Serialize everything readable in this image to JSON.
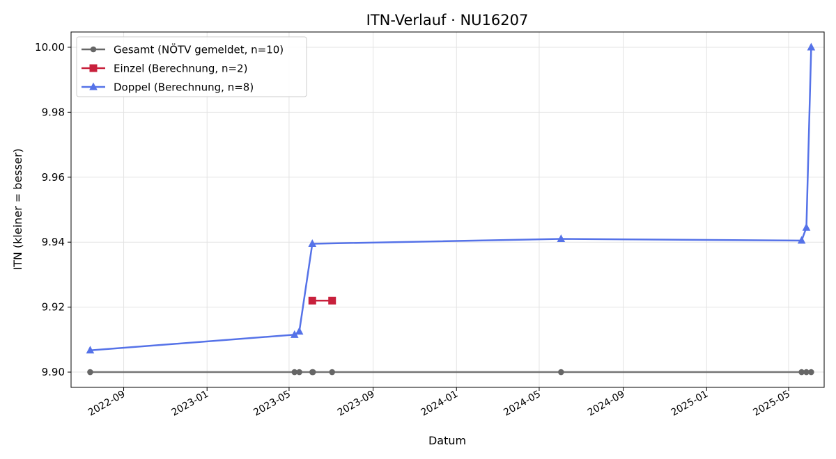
{
  "chart_data": {
    "type": "line",
    "title": "ITN-Verlauf · NU16207",
    "xlabel": "Datum",
    "ylabel": "ITN  (kleiner = besser)",
    "x_ticks": [
      "2022-09",
      "2023-01",
      "2023-05",
      "2023-09",
      "2024-01",
      "2024-05",
      "2024-09",
      "2025-01",
      "2025-05"
    ],
    "y_ticks": [
      "9.90",
      "9.92",
      "9.94",
      "9.96",
      "9.98",
      "10.00"
    ],
    "xlim": [
      "2022-06-16",
      "2025-06-22"
    ],
    "ylim": [
      9.8953,
      10.0047
    ],
    "grid": true,
    "legend_position": "top-left",
    "series": [
      {
        "name": "Gesamt (NÖTV gemeldet, n=10)",
        "color": "#666666",
        "marker": "circle",
        "x": [
          "2022-07-14",
          "2023-05-09",
          "2023-05-16",
          "2023-06-04",
          "2023-06-05",
          "2023-07-03",
          "2024-06-02",
          "2025-05-20",
          "2025-05-27",
          "2025-06-03"
        ],
        "y": [
          9.9,
          9.9,
          9.9,
          9.9,
          9.9,
          9.9,
          9.9,
          9.9,
          9.9,
          9.9
        ]
      },
      {
        "name": "Einzel (Berechnung, n=2)",
        "color": "#c8203c",
        "marker": "square",
        "x": [
          "2023-06-04",
          "2023-07-03"
        ],
        "y": [
          9.922,
          9.922
        ]
      },
      {
        "name": "Doppel (Berechnung, n=8)",
        "color": "#5572e8",
        "marker": "triangle",
        "x": [
          "2022-07-14",
          "2023-05-09",
          "2023-05-16",
          "2023-06-04",
          "2024-06-02",
          "2025-05-20",
          "2025-05-27",
          "2025-06-03"
        ],
        "y": [
          9.9067,
          9.9115,
          9.9125,
          9.9395,
          9.941,
          9.9405,
          9.9445,
          10.0
        ]
      }
    ]
  }
}
